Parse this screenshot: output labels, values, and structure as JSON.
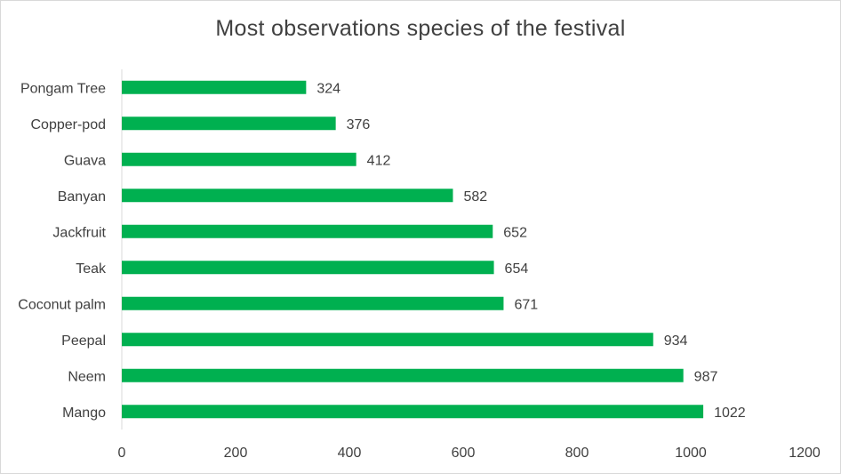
{
  "chart_data": {
    "type": "bar",
    "orientation": "horizontal",
    "title": "Most observations species of the festival",
    "categories": [
      "Mango",
      "Neem",
      "Peepal",
      "Coconut palm",
      "Teak",
      "Jackfruit",
      "Banyan",
      "Guava",
      "Copper-pod",
      "Pongam Tree"
    ],
    "values": [
      1022,
      987,
      934,
      671,
      654,
      652,
      582,
      412,
      376,
      324
    ],
    "xlabel": "",
    "ylabel": "",
    "xlim": [
      0,
      1200
    ],
    "x_ticks": [
      0,
      200,
      400,
      600,
      800,
      1000,
      1200
    ],
    "grid": false,
    "legend": "none",
    "bar_color": "#00b050",
    "data_labels": true
  }
}
